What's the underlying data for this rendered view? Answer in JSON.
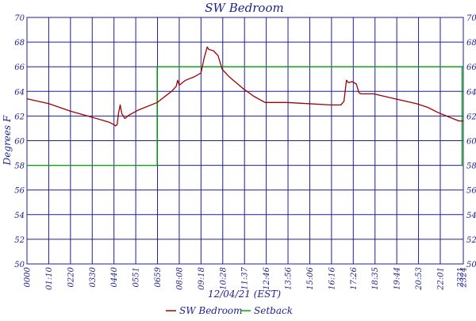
{
  "chart_data": {
    "type": "line",
    "title": "SW Bedroom",
    "xlabel": "12/04/21 (EST)",
    "ylabel": "Degrees F",
    "ylim": [
      50,
      70
    ],
    "y_ticks": [
      50,
      52,
      54,
      56,
      58,
      60,
      62,
      64,
      66,
      68,
      70
    ],
    "x_tick_labels": [
      "0000",
      "01:10",
      "0220",
      "0330",
      "0440",
      "0551",
      "0659",
      "08:08",
      "09:18",
      "10:28",
      "11:37",
      "12:46",
      "13:56",
      "15:06",
      "16:16",
      "17:26",
      "18:35",
      "19:44",
      "20:53",
      "22:01",
      "2321",
      "2324"
    ],
    "grid": true,
    "legend_position": "bottom",
    "colors": {
      "background": "#ffffff",
      "grid": "#1f1f8f",
      "text": "#1f1f8f",
      "sw_bedroom": "#a00000",
      "setback": "#00aa00"
    },
    "series": [
      {
        "name": "SW Bedroom",
        "x": [
          "00:00",
          "01:10",
          "02:20",
          "03:30",
          "04:25",
          "04:40",
          "04:45",
          "04:50",
          "04:55",
          "05:00",
          "05:05",
          "05:15",
          "05:30",
          "06:00",
          "06:59",
          "07:45",
          "08:00",
          "08:05",
          "08:10",
          "08:30",
          "09:00",
          "09:20",
          "09:30",
          "09:40",
          "09:45",
          "10:00",
          "10:15",
          "10:28",
          "10:50",
          "11:37",
          "12:10",
          "12:46",
          "13:56",
          "15:06",
          "16:16",
          "16:50",
          "17:00",
          "17:08",
          "17:15",
          "17:26",
          "17:40",
          "17:48",
          "17:55",
          "18:35",
          "19:44",
          "20:53",
          "21:30",
          "22:01",
          "22:30",
          "23:10",
          "23:24"
        ],
        "values": [
          63.4,
          63.0,
          62.4,
          61.9,
          61.5,
          61.3,
          61.2,
          61.3,
          62.3,
          62.9,
          62.2,
          61.8,
          62.1,
          62.5,
          63.1,
          64.0,
          64.4,
          64.9,
          64.5,
          64.9,
          65.2,
          65.5,
          66.7,
          67.6,
          67.4,
          67.3,
          66.9,
          65.8,
          65.2,
          64.2,
          63.6,
          63.1,
          63.1,
          63.0,
          62.9,
          62.9,
          63.2,
          64.9,
          64.7,
          64.8,
          64.6,
          63.9,
          63.8,
          63.8,
          63.4,
          63.0,
          62.7,
          62.3,
          62.0,
          61.6,
          61.6
        ]
      },
      {
        "name": "Setback",
        "x": [
          "00:00",
          "06:59",
          "06:59",
          "23:20",
          "23:20",
          "23:24"
        ],
        "values": [
          58,
          58,
          66,
          66,
          58,
          58
        ]
      }
    ]
  }
}
